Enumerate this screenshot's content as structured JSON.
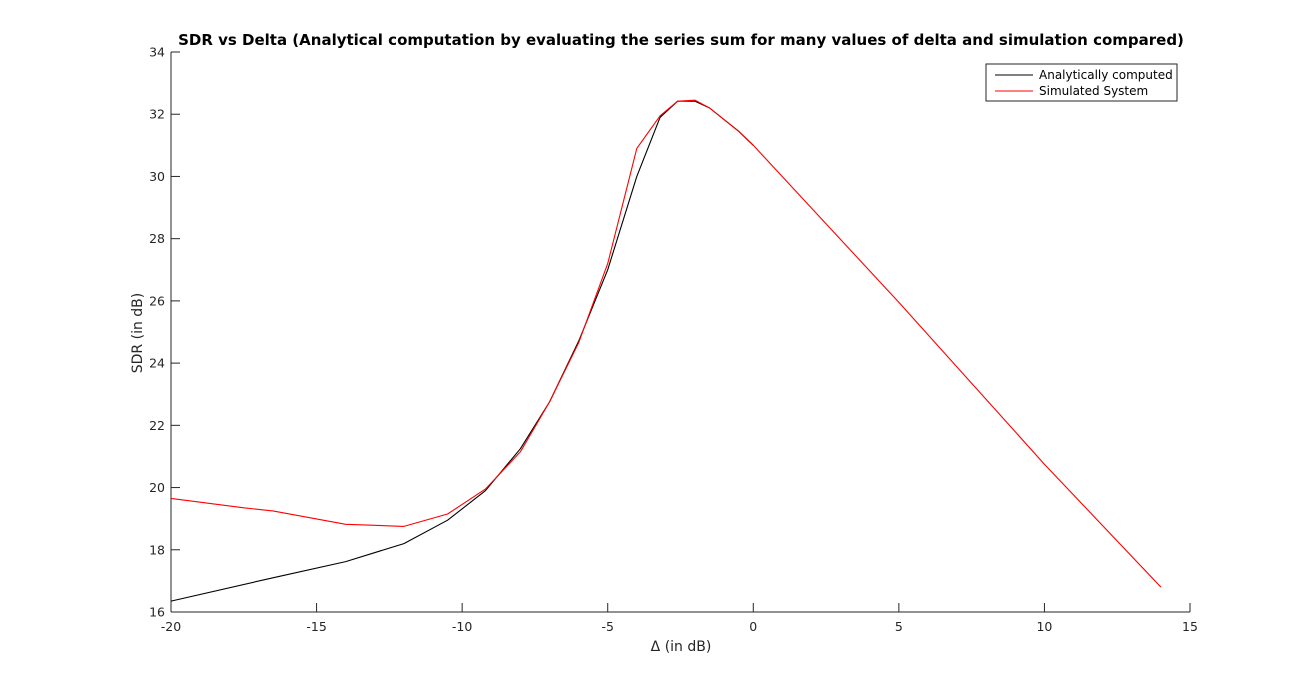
{
  "chart_data": {
    "type": "line",
    "title": "SDR vs Delta (Analytical computation by evaluating the series sum for many values of delta and simulation compared)",
    "xlabel": "Δ (in dB)",
    "ylabel": "SDR (in dB)",
    "xlim": [
      -20,
      15
    ],
    "ylim": [
      16,
      34
    ],
    "xticks": [
      -20,
      -15,
      -10,
      -5,
      0,
      5,
      10,
      15
    ],
    "yticks": [
      16,
      18,
      20,
      22,
      24,
      26,
      28,
      30,
      32,
      34
    ],
    "grid": false,
    "legend_position": "top-right",
    "series": [
      {
        "name": "Analytically computed",
        "color": "#000000",
        "x": [
          -20,
          -16.5,
          -14,
          -12,
          -10.5,
          -9.2,
          -8,
          -7,
          -6,
          -5,
          -4,
          -3.2,
          -2.6,
          -2,
          -1.5,
          -0.5,
          0
        ],
        "y": [
          16.35,
          17.1,
          17.62,
          18.2,
          18.95,
          19.9,
          21.25,
          22.75,
          24.7,
          27.0,
          30.0,
          31.9,
          32.42,
          32.42,
          32.2,
          31.45,
          31.0
        ]
      },
      {
        "name": "Simulated System",
        "color": "#ff0000",
        "x": [
          -20,
          -17.5,
          -16.5,
          -14,
          -12,
          -10.5,
          -9.2,
          -8,
          -7,
          -6,
          -5,
          -4,
          -3.2,
          -2.6,
          -2,
          -1.5,
          -0.5,
          0,
          5,
          10,
          14
        ],
        "y": [
          19.65,
          19.35,
          19.25,
          18.82,
          18.75,
          19.15,
          19.95,
          21.15,
          22.75,
          24.65,
          27.2,
          30.9,
          31.95,
          32.42,
          32.45,
          32.2,
          31.45,
          31.0,
          25.95,
          20.75,
          16.8
        ]
      }
    ]
  }
}
